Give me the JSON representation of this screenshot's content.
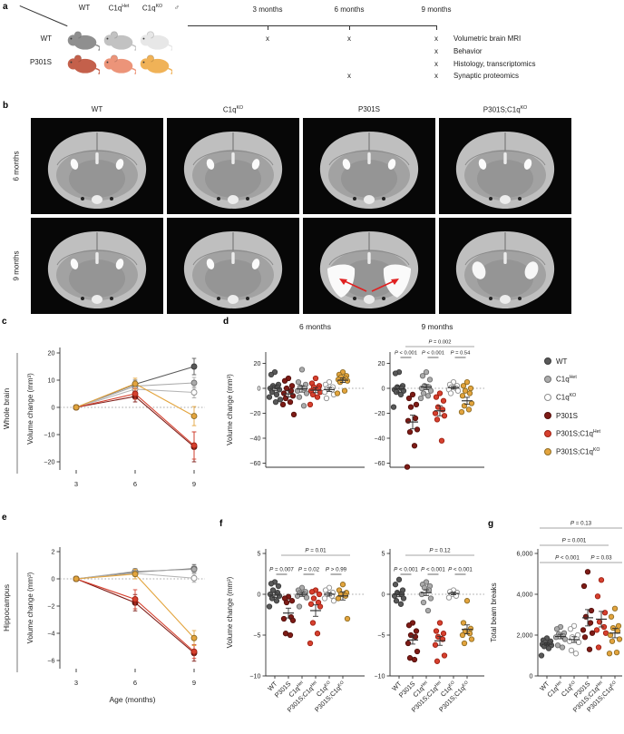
{
  "panel_letters": {
    "a": "a",
    "b": "b",
    "c": "c",
    "d": "d",
    "e": "e",
    "f": "f",
    "g": "g"
  },
  "colors": {
    "wt": {
      "fill": "#595959",
      "stroke": "#3b3b3b"
    },
    "c1qhet": {
      "fill": "#ababab",
      "stroke": "#6f6f6f"
    },
    "c1qko": {
      "fill": "#ffffff",
      "stroke": "#8f8f8f"
    },
    "p301s": {
      "fill": "#7e1b16",
      "stroke": "#53100c"
    },
    "p301s_c1qhet": {
      "fill": "#d6402e",
      "stroke": "#9e2013"
    },
    "p301s_c1qko": {
      "fill": "#e3a43d",
      "stroke": "#8f6d25"
    },
    "arrow_red": "#e02020",
    "axis": "#333333",
    "bracket_gray": "#a6a6a6",
    "bracket_dark": "#444444"
  },
  "group_labels": {
    "wt": {
      "t": "WT",
      "s": ""
    },
    "p301s": {
      "t": "P301S",
      "s": ""
    },
    "c1qhet": {
      "t": "C1q",
      "s": "Het"
    },
    "p301s_c1qhet": {
      "t": "P301S;C1q",
      "s": "Het"
    },
    "c1qko": {
      "t": "C1q",
      "s": "KO"
    },
    "p301s_c1qko": {
      "t": "P301S;C1q",
      "s": "KO"
    }
  },
  "legend": {
    "order": [
      "wt",
      "c1qhet",
      "c1qko",
      "p301s",
      "p301s_c1qhet",
      "p301s_c1qko"
    ]
  },
  "panel_a": {
    "mice": {
      "col_headers": [
        {
          "t": "WT",
          "s": ""
        },
        {
          "t": "C1q",
          "s": "Het"
        },
        {
          "t": "C1q",
          "s": "KO"
        },
        {
          "t": "♂",
          "s": ""
        }
      ],
      "rows": [
        {
          "label": "WT",
          "colors": [
            "#8f8f8f",
            "#c2c2c2",
            "#e7e7e7"
          ]
        },
        {
          "label": "P301S",
          "colors": [
            "#c4604b",
            "#ec9479",
            "#f0b257"
          ]
        }
      ]
    },
    "timeline": {
      "points": [
        "3 months",
        "6 months",
        "9 months"
      ],
      "mark": "x",
      "assays": [
        {
          "label": "Volumetric brain MRI",
          "marks": [
            true,
            true,
            true
          ]
        },
        {
          "label": "Behavior",
          "marks": [
            false,
            false,
            true
          ]
        },
        {
          "label": "Histology, transcriptomics",
          "marks": [
            false,
            false,
            true
          ]
        },
        {
          "label": "Synaptic proteomics",
          "marks": [
            false,
            true,
            true
          ]
        }
      ]
    }
  },
  "panel_b": {
    "col_keys": [
      "wt",
      "c1qko",
      "p301s",
      "p301s_c1qko"
    ],
    "row_labels": [
      "6 months",
      "9 months"
    ],
    "cells": [
      {
        "variant": "normal"
      },
      {
        "variant": "normal"
      },
      {
        "variant": "normal"
      },
      {
        "variant": "normal"
      },
      {
        "variant": "normal"
      },
      {
        "variant": "normal"
      },
      {
        "variant": "atrophy"
      },
      {
        "variant": "mild"
      }
    ]
  },
  "chart_data": [
    {
      "id": "whole_brain",
      "type": "line",
      "outer_label": "Whole brain",
      "ylabel": "Volume change (mm³)",
      "x": [
        3,
        6,
        9
      ],
      "ylim": [
        -20,
        20
      ],
      "yticks": [
        {
          "v": 20,
          "l": "20"
        },
        {
          "v": 10,
          "l": "10"
        },
        {
          "v": 0,
          "l": "0"
        },
        {
          "v": -10,
          "l": "−10"
        },
        {
          "v": -20,
          "l": "−20"
        }
      ],
      "series": [
        {
          "key": "wt",
          "values": [
            0,
            8.5,
            15
          ],
          "err": [
            0,
            1.5,
            3
          ]
        },
        {
          "key": "c1qhet",
          "values": [
            0,
            7.8,
            9
          ],
          "err": [
            0,
            1.5,
            2
          ]
        },
        {
          "key": "c1qko",
          "values": [
            0,
            6.7,
            5.5
          ],
          "err": [
            0,
            1.5,
            2
          ]
        },
        {
          "key": "p301s",
          "values": [
            0,
            4,
            -14.5
          ],
          "err": [
            0,
            2,
            5.5
          ]
        },
        {
          "key": "p301s_c1qhet",
          "values": [
            0,
            5,
            -14
          ],
          "err": [
            0,
            2,
            5
          ]
        },
        {
          "key": "p301s_c1qko",
          "values": [
            0,
            8.7,
            -3.2
          ],
          "err": [
            0,
            2,
            3.5
          ]
        }
      ]
    },
    {
      "id": "d6",
      "type": "strip",
      "title": "6 months",
      "ylabel": "Volume change (mm³)",
      "ylim": [
        -68,
        24
      ],
      "yticks": [
        {
          "v": 20,
          "l": "20"
        },
        {
          "v": 0,
          "l": "0"
        },
        {
          "v": -20,
          "l": "−20"
        },
        {
          "v": -40,
          "l": "−40"
        },
        {
          "v": -60,
          "l": "−60"
        }
      ],
      "order": [
        "wt",
        "p301s",
        "c1qhet",
        "p301s_c1qhet",
        "c1qko",
        "p301s_c1qko"
      ],
      "groups": {
        "wt": {
          "points": [
            13,
            11,
            3,
            2,
            1,
            0,
            -1,
            -3,
            -5,
            -7,
            -9,
            -11
          ],
          "mean": 0,
          "sem": 2
        },
        "p301s": {
          "points": [
            8,
            6,
            2,
            0,
            -2,
            -4,
            -6,
            -8,
            -11,
            -13,
            -21
          ],
          "mean": -4.5,
          "sem": 2.5
        },
        "c1qhet": {
          "points": [
            15,
            5,
            3,
            1,
            0,
            -2,
            -4,
            -7,
            -14
          ],
          "mean": -0.5,
          "sem": 2.5
        },
        "p301s_c1qhet": {
          "points": [
            8,
            4,
            2,
            1,
            0,
            -2,
            -3,
            -5,
            -7,
            -13
          ],
          "mean": -1.5,
          "sem": 2
        },
        "c1qko": {
          "points": [
            5,
            3,
            1,
            0,
            -1,
            -3,
            -5,
            -8
          ],
          "mean": -1,
          "sem": 1.5
        },
        "p301s_c1qko": {
          "points": [
            13,
            11,
            10,
            9,
            8,
            7,
            6,
            5,
            -2,
            -4
          ],
          "mean": 6.5,
          "sem": 1.8
        }
      },
      "brackets": []
    },
    {
      "id": "d9",
      "type": "strip",
      "title": "9 months",
      "ylim": [
        -68,
        24
      ],
      "yticks": [
        {
          "v": 20,
          "l": "20"
        },
        {
          "v": 0,
          "l": "0"
        },
        {
          "v": -20,
          "l": "−20"
        },
        {
          "v": -40,
          "l": "−40"
        },
        {
          "v": -60,
          "l": "−60"
        }
      ],
      "order": [
        "wt",
        "p301s",
        "c1qhet",
        "p301s_c1qhet",
        "c1qko",
        "p301s_c1qko"
      ],
      "groups": {
        "wt": {
          "points": [
            13,
            12,
            2,
            1,
            0,
            -1,
            -2,
            -3,
            -5,
            -15
          ],
          "mean": -0.5,
          "sem": 2.5
        },
        "p301s": {
          "points": [
            -5,
            -8,
            -13,
            -15,
            -24,
            -26,
            -33,
            -35,
            -46,
            -63
          ],
          "mean": -27,
          "sem": 5.5
        },
        "c1qhet": {
          "points": [
            13,
            10,
            7,
            2,
            1,
            0,
            -2,
            -4,
            -6,
            -8
          ],
          "mean": 1,
          "sem": 2
        },
        "p301s_c1qhet": {
          "points": [
            -4,
            -7,
            -10,
            -15,
            -17,
            -20,
            -22,
            -25,
            -42
          ],
          "mean": -18,
          "sem": 4
        },
        "c1qko": {
          "points": [
            5,
            3,
            2,
            1,
            0,
            -1,
            -2,
            -4
          ],
          "mean": 0.5,
          "sem": 1
        },
        "p301s_c1qko": {
          "points": [
            5,
            2,
            0,
            -2,
            -4,
            -6,
            -12,
            -14,
            -17,
            -19
          ],
          "mean": -10,
          "sem": 2.8
        }
      },
      "brackets": [
        {
          "a": 1,
          "b": 5,
          "label": "P = 0.002",
          "level": 0,
          "long": true
        },
        {
          "a": 0,
          "b": 1,
          "label": "P < 0.001",
          "level": 1
        },
        {
          "a": 2,
          "b": 3,
          "label": "P < 0.001",
          "level": 1
        },
        {
          "a": 4,
          "b": 5,
          "label": "P = 0.54",
          "level": 1
        }
      ]
    },
    {
      "id": "hippocampus",
      "type": "line",
      "outer_label": "Hippocampus",
      "ylabel": "Volume change (mm³)",
      "xlabel": "Age (months)",
      "x": [
        3,
        6,
        9
      ],
      "ylim": [
        -6.5,
        2.3
      ],
      "yticks": [
        {
          "v": 2,
          "l": "2"
        },
        {
          "v": 0,
          "l": "0"
        },
        {
          "v": -2,
          "l": "−2"
        },
        {
          "v": -4,
          "l": "−4"
        },
        {
          "v": -6,
          "l": "−6"
        }
      ],
      "series": [
        {
          "key": "wt",
          "values": [
            0,
            0.5,
            0.75
          ],
          "err": [
            0,
            0.25,
            0.3
          ]
        },
        {
          "key": "c1qhet",
          "values": [
            0,
            0.55,
            0.7
          ],
          "err": [
            0,
            0.2,
            0.25
          ]
        },
        {
          "key": "c1qko",
          "values": [
            0,
            0.4,
            0.05
          ],
          "err": [
            0,
            0.2,
            0.3
          ]
        },
        {
          "key": "p301s",
          "values": [
            0,
            -1.75,
            -5.45
          ],
          "err": [
            0,
            0.6,
            0.6
          ]
        },
        {
          "key": "p301s_c1qhet",
          "values": [
            0,
            -1.5,
            -5.35
          ],
          "err": [
            0,
            0.7,
            0.5
          ]
        },
        {
          "key": "p301s_c1qko",
          "values": [
            0,
            0.35,
            -4.35
          ],
          "err": [
            0,
            0.35,
            0.55
          ]
        }
      ]
    },
    {
      "id": "f6",
      "type": "strip",
      "ylabel": "Volume change (mm³)",
      "show_xlabels": true,
      "ylim": [
        -10,
        5.5
      ],
      "yticks": [
        {
          "v": 5,
          "l": "5"
        },
        {
          "v": 0,
          "l": "0"
        },
        {
          "v": -5,
          "l": "−5"
        },
        {
          "v": -10,
          "l": "−10"
        }
      ],
      "order": [
        "wt",
        "p301s",
        "c1qhet",
        "p301s_c1qhet",
        "c1qko",
        "p301s_c1qko"
      ],
      "groups": {
        "wt": {
          "points": [
            1.5,
            1.3,
            1.0,
            0.5,
            0.2,
            0,
            -0.2,
            -0.5,
            -0.8,
            -1.5
          ],
          "mean": -0.1,
          "sem": 0.3
        },
        "p301s": {
          "points": [
            -0.3,
            -0.5,
            -0.8,
            -1.0,
            -2.8,
            -3.0,
            -3.2,
            -4.8,
            -5.0
          ],
          "mean": -2.3,
          "sem": 0.6
        },
        "c1qhet": {
          "points": [
            0.8,
            0.5,
            0.3,
            0.2,
            0,
            -0.2,
            -0.4,
            -1.5
          ],
          "mean": 0,
          "sem": 0.25
        },
        "p301s_c1qhet": {
          "points": [
            0.5,
            0.3,
            0,
            -0.5,
            -1.0,
            -1.2,
            -1.5,
            -3.5,
            -4.8,
            -6.0
          ],
          "mean": -2.0,
          "sem": 0.7
        },
        "c1qko": {
          "points": [
            0.8,
            0.5,
            0.2,
            0,
            -0.2,
            -0.5,
            -0.8
          ],
          "mean": 0,
          "sem": 0.2
        },
        "p301s_c1qko": {
          "points": [
            1.2,
            0.5,
            0.2,
            0,
            -0.2,
            -0.5,
            -3.0
          ],
          "mean": -0.2,
          "sem": 0.5
        }
      },
      "brackets": [
        {
          "a": 1,
          "b": 5,
          "label": "P = 0.01",
          "level": 0,
          "long": true
        },
        {
          "a": 0,
          "b": 1,
          "label": "P = 0.007",
          "level": 1
        },
        {
          "a": 2,
          "b": 3,
          "label": "P = 0.02",
          "level": 1
        },
        {
          "a": 4,
          "b": 5,
          "label": "P > 0.99",
          "level": 1
        }
      ]
    },
    {
      "id": "f9",
      "type": "strip",
      "show_xlabels": true,
      "ylim": [
        -10,
        5.5
      ],
      "yticks": [
        {
          "v": 5,
          "l": "5"
        },
        {
          "v": 0,
          "l": "0"
        },
        {
          "v": -5,
          "l": "−5"
        },
        {
          "v": -10,
          "l": "−10"
        }
      ],
      "order": [
        "wt",
        "p301s",
        "c1qhet",
        "p301s_c1qhet",
        "c1qko",
        "p301s_c1qko"
      ],
      "groups": {
        "wt": {
          "points": [
            1.8,
            1.2,
            0.5,
            0.2,
            0,
            -0.2,
            -0.5,
            -0.8,
            -1.2
          ],
          "mean": 0,
          "sem": 0.3
        },
        "p301s": {
          "points": [
            -3.5,
            -3.8,
            -4.5,
            -5.0,
            -5.2,
            -6.0,
            -7.0,
            -7.8,
            -8.0
          ],
          "mean": -5.6,
          "sem": 0.5
        },
        "c1qhet": {
          "points": [
            1.5,
            1.2,
            1.0,
            0.8,
            0.5,
            0,
            -0.5,
            -1.0,
            -2.0
          ],
          "mean": 0.2,
          "sem": 0.35
        },
        "p301s_c1qhet": {
          "points": [
            -3.5,
            -4.5,
            -4.8,
            -5.2,
            -5.5,
            -6.2,
            -7.5,
            -8.2
          ],
          "mean": -5.7,
          "sem": 0.55
        },
        "c1qko": {
          "points": [
            0.5,
            0.3,
            0.2,
            0,
            -0.2,
            -0.4
          ],
          "mean": 0.1,
          "sem": 0.15
        },
        "p301s_c1qko": {
          "points": [
            -0.8,
            -3.5,
            -4.2,
            -4.5,
            -4.8,
            -5.0,
            -5.5,
            -6.0
          ],
          "mean": -4.3,
          "sem": 0.55
        }
      },
      "brackets": [
        {
          "a": 1,
          "b": 5,
          "label": "P = 0.12",
          "level": 0,
          "long": true
        },
        {
          "a": 0,
          "b": 1,
          "label": "P < 0.001",
          "level": 1
        },
        {
          "a": 2,
          "b": 3,
          "label": "P < 0.001",
          "level": 1
        },
        {
          "a": 4,
          "b": 5,
          "label": "P < 0.001",
          "level": 1
        }
      ]
    },
    {
      "id": "beam",
      "type": "strip",
      "ylabel": "Total beam breaks",
      "show_xlabels": true,
      "ylim": [
        0,
        6200
      ],
      "yticks": [
        {
          "v": 6000,
          "l": "6,000"
        },
        {
          "v": 4000,
          "l": "4,000"
        },
        {
          "v": 2000,
          "l": "2,000"
        },
        {
          "v": 0,
          "l": "0"
        }
      ],
      "order": [
        "wt",
        "c1qhet",
        "c1qko",
        "p301s",
        "p301s_c1qhet",
        "p301s_c1qko"
      ],
      "groups": {
        "wt": {
          "points": [
            1850,
            1750,
            1700,
            1650,
            1600,
            1550,
            1500,
            1450,
            1350,
            1000
          ],
          "mean": 1550,
          "sem": 70
        },
        "c1qhet": {
          "points": [
            2400,
            2300,
            2100,
            2050,
            1950,
            1900,
            1800,
            1500,
            1400
          ],
          "mean": 1930,
          "sem": 110
        },
        "c1qko": {
          "points": [
            2450,
            2300,
            2000,
            1900,
            1800,
            1700,
            1650,
            1250,
            1100
          ],
          "mean": 1780,
          "sem": 140
        },
        "p301s": {
          "points": [
            5100,
            4400,
            3200,
            2900,
            2600,
            2250,
            2100,
            1900,
            1300
          ],
          "mean": 2850,
          "sem": 400
        },
        "p301s_c1qhet": {
          "points": [
            4700,
            3900,
            3100,
            2650,
            2400,
            2250,
            2100,
            1400
          ],
          "mean": 2780,
          "sem": 380
        },
        "p301s_c1qko": {
          "points": [
            3300,
            2900,
            2450,
            2350,
            2200,
            2000,
            1800,
            1700,
            1150,
            1100
          ],
          "mean": 2100,
          "sem": 230
        }
      },
      "brackets": [
        {
          "a": 0,
          "b": 5,
          "label": "P = 0.13",
          "level": 0,
          "long": true
        },
        {
          "a": 0,
          "b": 4,
          "label": "P = 0.001",
          "level": 1,
          "long": true
        },
        {
          "a": 0,
          "b": 3,
          "label": "P < 0.001",
          "level": 2,
          "long": true
        },
        {
          "a": 3,
          "b": 5,
          "label": "P = 0.03",
          "level": 2,
          "long": true
        }
      ]
    }
  ]
}
